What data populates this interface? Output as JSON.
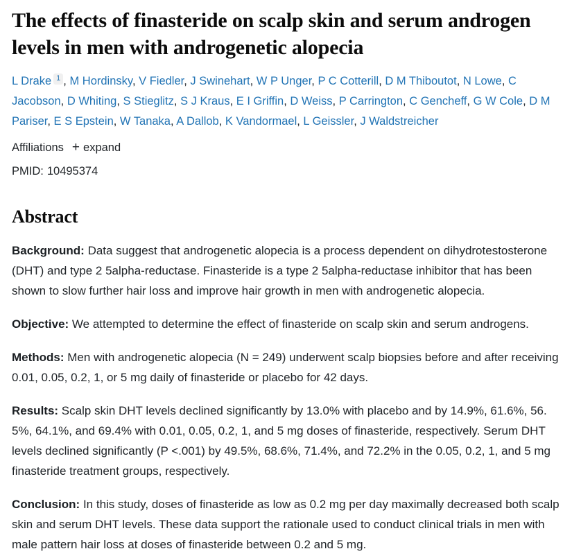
{
  "article": {
    "title": "The effects of finasteride on scalp skin and serum androgen levels in men with androgenetic alopecia",
    "authors": [
      {
        "name": "L Drake",
        "sup": "1"
      },
      {
        "name": "M Hordinsky"
      },
      {
        "name": "V Fiedler"
      },
      {
        "name": "J Swinehart"
      },
      {
        "name": "W P Unger"
      },
      {
        "name": "P C Cotterill"
      },
      {
        "name": "D M Thiboutot"
      },
      {
        "name": "N Lowe"
      },
      {
        "name": "C Jacobson"
      },
      {
        "name": "D Whiting"
      },
      {
        "name": "S Stieglitz"
      },
      {
        "name": "S J Kraus"
      },
      {
        "name": "E I Griffin"
      },
      {
        "name": "D Weiss"
      },
      {
        "name": "P Carrington"
      },
      {
        "name": "C Gencheff"
      },
      {
        "name": "G W Cole"
      },
      {
        "name": "D M Pariser"
      },
      {
        "name": "E S Epstein"
      },
      {
        "name": "W Tanaka"
      },
      {
        "name": "A Dallob"
      },
      {
        "name": "K Vandormael"
      },
      {
        "name": "L Geissler"
      },
      {
        "name": "J Waldstreicher"
      }
    ],
    "author_separator": ", ",
    "affiliations": {
      "label": "Affiliations",
      "plus_icon": "+",
      "expand_label": "expand"
    },
    "pmid": {
      "label": "PMID:",
      "value": "10495374"
    },
    "abstract": {
      "heading": "Abstract",
      "sections": [
        {
          "label": "Background:",
          "text": "Data suggest that androgenetic alopecia is a process dependent on dihydrotestosterone (DHT) and type 2 5alpha-reductase. Finasteride is a type 2 5alpha-reductase inhibitor that has been shown to slow further hair loss and improve hair growth in men with androgenetic alopecia."
        },
        {
          "label": "Objective:",
          "text": "We attempted to determine the effect of finasteride on scalp skin and serum androgens."
        },
        {
          "label": "Methods:",
          "text": "Men with androgenetic alopecia (N = 249) underwent scalp biopsies before and after receiving 0.01, 0.05, 0.2, 1, or 5 mg daily of finasteride or placebo for 42 days."
        },
        {
          "label": "Results:",
          "text": "Scalp skin DHT levels declined significantly by 13.0% with placebo and by 14.9%, 61.6%, 56. 5%, 64.1%, and 69.4% with 0.01, 0.05, 0.2, 1, and 5 mg doses of finasteride, respectively. Serum DHT levels declined significantly (P <.001) by 49.5%, 68.6%, 71.4%, and 72.2% in the 0.05, 0.2, 1, and 5 mg finasteride treatment groups, respectively."
        },
        {
          "label": "Conclusion:",
          "text": "In this study, doses of finasteride as low as 0.2 mg per day maximally decreased both scalp skin and serum DHT levels. These data support the rationale used to conduct clinical trials in men with male pattern hair loss at doses of finasteride between 0.2 and 5 mg."
        }
      ]
    },
    "colors": {
      "link_blue": "#2274b5",
      "body_text": "#212529",
      "heading_text": "#0c0c0c",
      "sup_chip_bg": "#f0f0f0",
      "background": "#ffffff"
    }
  }
}
